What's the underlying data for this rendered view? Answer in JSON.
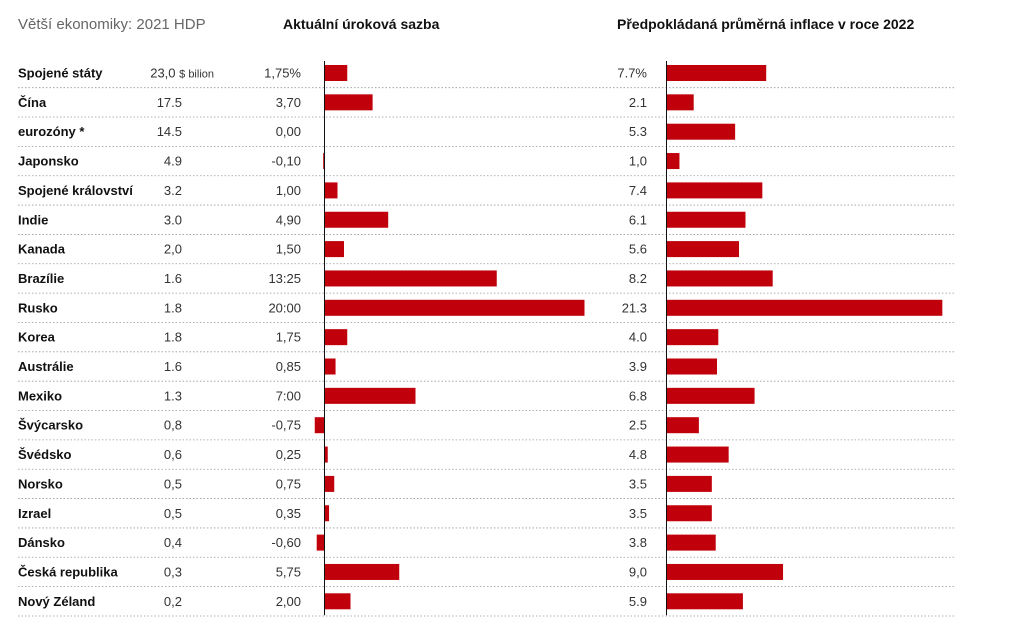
{
  "chart_data": {
    "type": "bar",
    "headers": {
      "gdp": "Větší ekonomiky: 2021 HDP",
      "rate": "Aktuální úroková sazba",
      "inflation": "Předpokládaná průměrná inflace v roce 2022"
    },
    "gdp_unit": "$ bilion",
    "series": [
      {
        "name": "Aktuální úroková sazba",
        "unit": "%",
        "first_suffix": "%",
        "labels": [
          "1,75",
          "3,70",
          "0,00",
          "-0,10",
          "1,00",
          "4,90",
          "1,50",
          "13:25",
          "20:00",
          "1,75",
          "0,85",
          "7:00",
          "-0,75",
          "0,25",
          "0,75",
          "0,35",
          "-0,60",
          "5,75",
          "2,00"
        ],
        "values": [
          1.75,
          3.7,
          0.0,
          -0.1,
          1.0,
          4.9,
          1.5,
          13.25,
          20.0,
          1.75,
          0.85,
          7.0,
          -0.75,
          0.25,
          0.75,
          0.35,
          -0.6,
          5.75,
          2.0
        ]
      },
      {
        "name": "Předpokládaná průměrná inflace v roce 2022",
        "unit": "%",
        "first_suffix": "%",
        "labels": [
          "7.7",
          "2.1",
          "5.3",
          "1,0",
          "7.4",
          "6.1",
          "5.6",
          "8.2",
          "21.3",
          "4.0",
          "3.9",
          "6.8",
          "2.5",
          "4.8",
          "3.5",
          "3.5",
          "3.8",
          "9,0",
          "5.9"
        ],
        "values": [
          7.7,
          2.1,
          5.3,
          1.0,
          7.4,
          6.1,
          5.6,
          8.2,
          21.3,
          4.0,
          3.9,
          6.8,
          2.5,
          4.8,
          3.5,
          3.5,
          3.8,
          9.0,
          5.9
        ]
      }
    ],
    "rows": [
      {
        "country": "Spojené státy",
        "gdp": "23,0"
      },
      {
        "country": "Čína",
        "gdp": "17.5"
      },
      {
        "country": "eurozóny *",
        "gdp": "14.5"
      },
      {
        "country": "Japonsko",
        "gdp": "4.9"
      },
      {
        "country": "Spojené království",
        "gdp": "3.2"
      },
      {
        "country": "Indie",
        "gdp": "3.0"
      },
      {
        "country": "Kanada",
        "gdp": "2,0"
      },
      {
        "country": "Brazílie",
        "gdp": "1.6"
      },
      {
        "country": "Rusko",
        "gdp": "1.8"
      },
      {
        "country": "Korea",
        "gdp": "1.8"
      },
      {
        "country": "Austrálie",
        "gdp": "1.6"
      },
      {
        "country": "Mexiko",
        "gdp": "1.3"
      },
      {
        "country": "Švýcarsko",
        "gdp": "0,8"
      },
      {
        "country": "Švédsko",
        "gdp": "0,6"
      },
      {
        "country": "Norsko",
        "gdp": "0,5"
      },
      {
        "country": "Izrael",
        "gdp": "0,5"
      },
      {
        "country": "Dánsko",
        "gdp": "0,4"
      },
      {
        "country": "Česká republika",
        "gdp": "0,3"
      },
      {
        "country": "Nový Zéland",
        "gdp": "0,2"
      }
    ],
    "colors": {
      "bar": "#c0000a",
      "separator": "#999999",
      "axis": "#111111"
    }
  }
}
